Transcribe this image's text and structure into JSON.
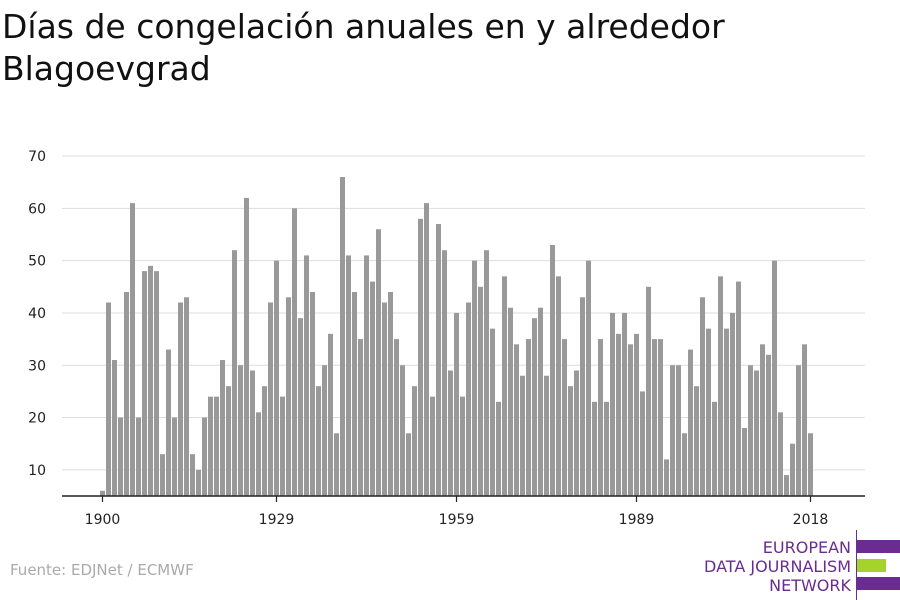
{
  "title": "Días de congelación anuales en y alrededor Blagoevgrad",
  "source": "Fuente: EDJNet / ECMWF",
  "logo": {
    "lines": [
      "EUROPEAN",
      "DATA JOURNALISM",
      "NETWORK"
    ],
    "colors": {
      "purple": "#6a2c91",
      "green": "#a6d22c"
    }
  },
  "chart_data": {
    "type": "bar",
    "title": "Días de congelación anuales en y alrededor Blagoevgrad",
    "xlabel": "",
    "ylabel": "",
    "ylim": [
      5,
      72
    ],
    "yticks": [
      10,
      20,
      30,
      40,
      50,
      60,
      70
    ],
    "xticks": [
      1900,
      1929,
      1959,
      1989,
      2018
    ],
    "x_start": 1900,
    "bar_color": "#999999",
    "grid": true,
    "values": [
      6,
      42,
      31,
      20,
      44,
      61,
      20,
      48,
      49,
      48,
      13,
      33,
      20,
      42,
      43,
      13,
      10,
      20,
      24,
      24,
      31,
      26,
      52,
      30,
      62,
      29,
      21,
      26,
      42,
      50,
      24,
      43,
      60,
      39,
      51,
      44,
      26,
      30,
      36,
      17,
      66,
      51,
      44,
      35,
      51,
      46,
      56,
      42,
      44,
      35,
      30,
      17,
      26,
      58,
      61,
      24,
      57,
      52,
      29,
      40,
      24,
      42,
      50,
      45,
      52,
      37,
      23,
      47,
      41,
      34,
      28,
      35,
      39,
      41,
      28,
      53,
      47,
      35,
      26,
      29,
      43,
      50,
      23,
      35,
      23,
      40,
      36,
      40,
      34,
      36,
      25,
      45,
      35,
      35,
      12,
      30,
      30,
      17,
      33,
      26,
      43,
      37,
      23,
      47,
      37,
      40,
      46,
      18,
      30,
      29,
      34,
      32,
      50,
      21,
      9,
      15,
      30,
      34,
      17
    ]
  }
}
